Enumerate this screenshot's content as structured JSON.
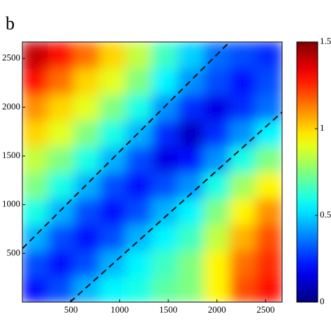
{
  "chart_data": {
    "type": "heatmap",
    "panel_label": "b",
    "colormap": "jet",
    "xlim": [
      0,
      2670
    ],
    "ylim": [
      0,
      2670
    ],
    "xticks": [
      500,
      1000,
      1500,
      2000,
      2500
    ],
    "yticks": [
      500,
      1000,
      1500,
      2000,
      2500
    ],
    "z": [
      [
        0.2,
        0.3,
        0.45,
        0.55,
        0.6,
        0.7,
        0.75,
        0.95,
        1.2,
        1.3
      ],
      [
        0.3,
        0.2,
        0.3,
        0.45,
        0.55,
        0.65,
        0.75,
        0.95,
        1.15,
        1.25
      ],
      [
        0.45,
        0.3,
        0.2,
        0.3,
        0.45,
        0.55,
        0.65,
        0.85,
        1.05,
        1.2
      ],
      [
        0.6,
        0.45,
        0.3,
        0.2,
        0.3,
        0.45,
        0.55,
        0.75,
        0.95,
        1.1
      ],
      [
        0.75,
        0.6,
        0.45,
        0.3,
        0.2,
        0.3,
        0.4,
        0.6,
        0.8,
        0.95
      ],
      [
        0.85,
        0.75,
        0.6,
        0.45,
        0.3,
        0.15,
        0.2,
        0.4,
        0.6,
        0.75
      ],
      [
        1.0,
        0.9,
        0.75,
        0.6,
        0.45,
        0.25,
        0.1,
        0.25,
        0.4,
        0.55
      ],
      [
        1.1,
        1.0,
        0.9,
        0.75,
        0.6,
        0.4,
        0.25,
        0.15,
        0.25,
        0.35
      ],
      [
        1.3,
        1.15,
        1.0,
        0.9,
        0.75,
        0.55,
        0.4,
        0.3,
        0.2,
        0.3
      ],
      [
        1.4,
        1.3,
        1.15,
        1.0,
        0.85,
        0.65,
        0.5,
        0.35,
        0.3,
        0.25
      ]
    ],
    "clim": [
      0,
      1.5
    ],
    "colorbar_ticks": [
      0,
      0.5,
      1,
      1.5
    ],
    "dashed_lines": [
      {
        "x": [
          0,
          2130
        ],
        "y": [
          550,
          2670
        ]
      },
      {
        "x": [
          490,
          2670
        ],
        "y": [
          0,
          1950
        ]
      }
    ]
  }
}
